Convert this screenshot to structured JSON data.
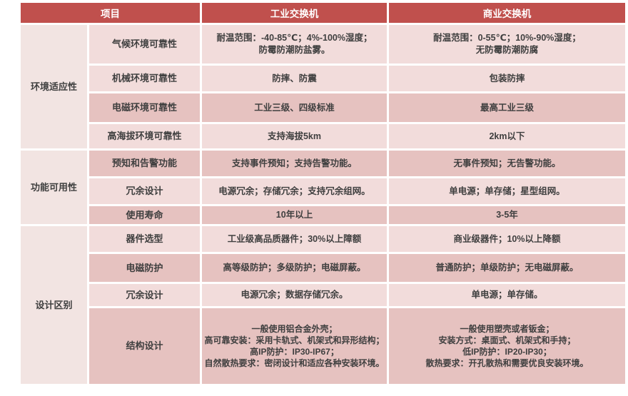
{
  "theme": {
    "page_bg": "#FFFFFF",
    "header_bg": "#C0504D",
    "header_text": "#FFFFFF",
    "row_light": "#F2DCDB",
    "row_dark": "#E6C2C0",
    "category_bg": "#F2E4E2",
    "body_text": "#3F3F3F"
  },
  "table": {
    "headers": {
      "item": "项目",
      "industrial": "工业交换机",
      "commercial": "商业交换机"
    },
    "groups": [
      {
        "category": "环境适应性",
        "rows": [
          {
            "label": "气候环境可靠性",
            "industrial": "耐温范围：-40-85℃；4%-100%湿度；\n防霉防潮防盐雾。",
            "commercial": "耐温范围：0-55℃；10%-90%湿度；\n无防霉防潮防腐"
          },
          {
            "label": "机械环境可靠性",
            "industrial": "防摔、防震",
            "commercial": "包装防摔"
          },
          {
            "label": "电磁环境可靠性",
            "industrial": "工业三级、四级标准",
            "commercial": "最高工业三级"
          },
          {
            "label": "高海拔环境可靠性",
            "industrial": "支持海拔5km",
            "commercial": "2km以下"
          }
        ]
      },
      {
        "category": "功能可用性",
        "rows": [
          {
            "label": "预知和告警功能",
            "industrial": "支持事件预知；支持告警功能。",
            "commercial": "无事件预知；无告警功能。"
          },
          {
            "label": "冗余设计",
            "industrial": "电源冗余；存储冗余；支持冗余组网。",
            "commercial": "单电源；单存储；星型组网。"
          },
          {
            "label": "使用寿命",
            "industrial": "10年以上",
            "commercial": "3-5年"
          }
        ]
      },
      {
        "category": "设计区别",
        "rows": [
          {
            "label": "器件选型",
            "industrial": "工业级高品质器件；30%以上障额",
            "commercial": "商业级器件；10%以上降额"
          },
          {
            "label": "电磁防护",
            "industrial": "高等级防护；多级防护；电磁屏蔽。",
            "commercial": "普通防护；单级防护；无电磁屏蔽。"
          },
          {
            "label": "冗余设计",
            "industrial": "电源冗余；数据存储冗余。",
            "commercial": "单电源；单存储。"
          },
          {
            "label": "结构设计",
            "industrial": "一般使用铝合金外壳；\n高可靠安装：采用卡轨式、机架式和异形结构；\n高IP防护：IP30-IP67；\n自然散热要求：密闭设计和适应各种安装环境。",
            "commercial": "一般使用塑壳或者钣金；\n安装方式：桌面式、机架式和手持；\n低IP防护：IP20-IP30；\n散热要求：开孔散热和需要优良安装环境。"
          }
        ]
      }
    ]
  }
}
